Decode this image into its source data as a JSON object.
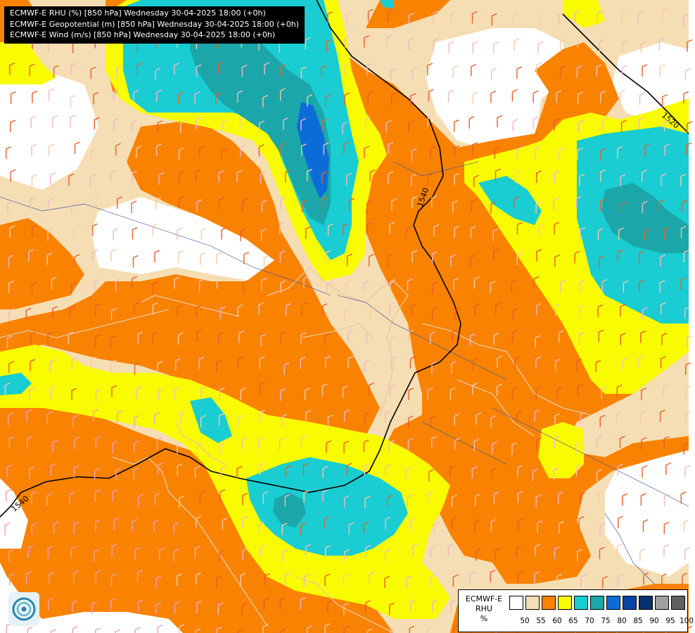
{
  "titles": {
    "line1": "ECMWF-E RHU (%) [850 hPa] Wednesday 30-04-2025 18:00 (+0h)",
    "line2": "ECMWF-E Geopotential (m) [850 hPa] Wednesday 30-04-2025 18:00 (+0h)",
    "line3": "ECMWF-E Wind (m/s) [850 hPa] Wednesday 30-04-2025 18:00 (+0h)"
  },
  "contours": {
    "labels": [
      "1520",
      "1540",
      "1540"
    ],
    "color": "#000000"
  },
  "legend": {
    "head1": "ECMWF-E",
    "head2": "RHU",
    "head3": "%",
    "colors": [
      "#ffffff",
      "#f5deb3",
      "#f98200",
      "#f9fb00",
      "#19cdd2",
      "#1ba7a9",
      "#0b6cd8",
      "#0645a8",
      "#0a2f6e",
      "#a0a0a0",
      "#606060"
    ],
    "ticks": [
      "50",
      "55",
      "60",
      "65",
      "70",
      "75",
      "80",
      "85",
      "90",
      "95",
      "100"
    ]
  },
  "logo": {
    "icon": "ecmwf-swirl-logo"
  }
}
